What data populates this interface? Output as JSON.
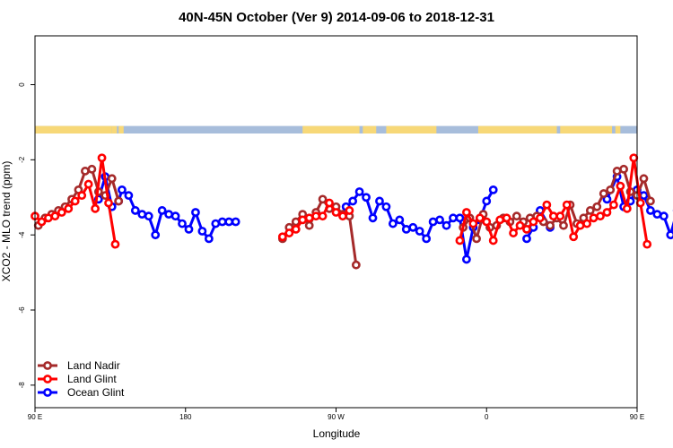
{
  "chart_data": {
    "type": "line",
    "title": "40N-45N October (Ver 9)   2014-09-06 to 2018-12-31",
    "xlabel": "Longitude",
    "ylabel": "XCO2 - MLO trend (ppm)",
    "xlim": [
      90,
      450
    ],
    "ylim": [
      -8.6,
      1.3
    ],
    "xticks": [
      {
        "value": 90,
        "label": "90 E"
      },
      {
        "value": 180,
        "label": "180"
      },
      {
        "value": 270,
        "label": "90 W"
      },
      {
        "value": 360,
        "label": "0"
      },
      {
        "value": 450,
        "label": "90 E"
      },
      {
        "value": 540,
        "label": "180"
      }
    ],
    "yticks": [
      {
        "value": 0,
        "label": "0"
      },
      {
        "value": -2,
        "label": "-2"
      },
      {
        "value": -4,
        "label": "-4"
      },
      {
        "value": -6,
        "label": "-6"
      },
      {
        "value": -8,
        "label": "-8"
      }
    ],
    "land_band": {
      "y_range": [
        -1.1,
        -1.3
      ],
      "ocean_color": "#a7bddb",
      "land_color": "#f7d878",
      "land_segments": [
        [
          90,
          136
        ],
        [
          136,
          139
        ],
        [
          140,
          143
        ],
        [
          250,
          284
        ],
        [
          286,
          294
        ],
        [
          300,
          330
        ],
        [
          355,
          402
        ],
        [
          404,
          435
        ],
        [
          437,
          440
        ]
      ]
    },
    "legend": {
      "position": "bottom-left",
      "entries": [
        {
          "name": "Land Nadir",
          "color": "#a52a2a"
        },
        {
          "name": "Land Glint",
          "color": "#ff0000"
        },
        {
          "name": "Ocean Glint",
          "color": "#0000ff"
        }
      ]
    },
    "series": [
      {
        "name": "Land Ocean Glint",
        "legend_name": "Ocean Glint",
        "color": "#0000ff",
        "segments": [
          [
            [
              128,
              -3.05
            ],
            [
              132,
              -2.45
            ],
            [
              136,
              -3.25
            ],
            [
              140,
              -3.1
            ],
            [
              142,
              -2.8
            ],
            [
              146,
              -2.95
            ],
            [
              150,
              -3.35
            ],
            [
              154,
              -3.45
            ],
            [
              158,
              -3.5
            ],
            [
              162,
              -4.0
            ],
            [
              166,
              -3.35
            ],
            [
              170,
              -3.45
            ],
            [
              174,
              -3.5
            ],
            [
              178,
              -3.7
            ],
            [
              182,
              -3.85
            ],
            [
              186,
              -3.4
            ],
            [
              190,
              -3.9
            ],
            [
              194,
              -4.1
            ],
            [
              198,
              -3.7
            ],
            [
              202,
              -3.65
            ],
            [
              206,
              -3.65
            ],
            [
              210,
              -3.65
            ]
          ],
          [
            [
              276,
              -3.25
            ],
            [
              280,
              -3.1
            ],
            [
              284,
              -2.85
            ],
            [
              288,
              -3.0
            ],
            [
              292,
              -3.55
            ],
            [
              296,
              -3.1
            ],
            [
              300,
              -3.25
            ],
            [
              304,
              -3.7
            ],
            [
              308,
              -3.6
            ],
            [
              312,
              -3.85
            ],
            [
              316,
              -3.8
            ],
            [
              320,
              -3.9
            ],
            [
              324,
              -4.1
            ],
            [
              328,
              -3.65
            ],
            [
              332,
              -3.6
            ],
            [
              336,
              -3.75
            ],
            [
              340,
              -3.55
            ],
            [
              344,
              -3.55
            ],
            [
              348,
              -4.65
            ],
            [
              352,
              -3.8
            ],
            [
              356,
              -3.6
            ],
            [
              360,
              -3.1
            ],
            [
              364,
              -2.8
            ]
          ],
          [
            [
              384,
              -4.1
            ],
            [
              388,
              -3.8
            ],
            [
              392,
              -3.35
            ],
            [
              398,
              -3.8
            ]
          ],
          [
            [
              432,
              -3.05
            ],
            [
              438,
              -2.45
            ],
            [
              442,
              -3.25
            ],
            [
              446,
              -3.1
            ],
            [
              450,
              -2.8
            ],
            [
              454,
              -2.95
            ],
            [
              458,
              -3.35
            ],
            [
              462,
              -3.45
            ],
            [
              466,
              -3.5
            ],
            [
              470,
              -4.0
            ],
            [
              474,
              -3.35
            ]
          ]
        ]
      },
      {
        "name": "Land Nadir",
        "color": "#a52a2a",
        "segments": [
          [
            [
              92,
              -3.75
            ],
            [
              96,
              -3.55
            ],
            [
              100,
              -3.45
            ],
            [
              104,
              -3.35
            ],
            [
              108,
              -3.25
            ],
            [
              112,
              -3.05
            ],
            [
              116,
              -2.8
            ],
            [
              120,
              -2.3
            ],
            [
              124,
              -2.25
            ],
            [
              128,
              -2.85
            ],
            [
              132,
              -2.95
            ],
            [
              136,
              -2.5
            ],
            [
              140,
              -3.1
            ]
          ],
          [
            [
              238,
              -4.1
            ],
            [
              242,
              -3.8
            ],
            [
              246,
              -3.65
            ],
            [
              250,
              -3.45
            ],
            [
              254,
              -3.75
            ],
            [
              258,
              -3.4
            ],
            [
              262,
              -3.05
            ],
            [
              266,
              -3.3
            ],
            [
              270,
              -3.25
            ],
            [
              274,
              -3.45
            ],
            [
              278,
              -3.5
            ],
            [
              282,
              -4.8
            ]
          ],
          [
            [
              346,
              -3.8
            ],
            [
              350,
              -3.55
            ],
            [
              354,
              -4.1
            ],
            [
              358,
              -3.45
            ],
            [
              362,
              -3.8
            ],
            [
              366,
              -3.75
            ],
            [
              370,
              -3.55
            ],
            [
              374,
              -3.65
            ],
            [
              378,
              -3.5
            ],
            [
              382,
              -3.65
            ],
            [
              386,
              -3.55
            ],
            [
              390,
              -3.5
            ],
            [
              394,
              -3.65
            ],
            [
              398,
              -3.75
            ],
            [
              402,
              -3.55
            ],
            [
              406,
              -3.75
            ],
            [
              410,
              -3.2
            ],
            [
              414,
              -3.7
            ],
            [
              418,
              -3.55
            ],
            [
              422,
              -3.35
            ],
            [
              426,
              -3.25
            ],
            [
              430,
              -2.9
            ],
            [
              434,
              -2.8
            ],
            [
              438,
              -2.3
            ],
            [
              442,
              -2.25
            ],
            [
              446,
              -2.85
            ],
            [
              450,
              -2.95
            ],
            [
              454,
              -2.5
            ],
            [
              458,
              -3.1
            ]
          ]
        ]
      },
      {
        "name": "Land Glint",
        "color": "#ff0000",
        "segments": [
          [
            [
              90,
              -3.5
            ],
            [
              94,
              -3.65
            ],
            [
              98,
              -3.55
            ],
            [
              102,
              -3.5
            ],
            [
              106,
              -3.4
            ],
            [
              110,
              -3.3
            ],
            [
              114,
              -3.1
            ],
            [
              118,
              -2.95
            ],
            [
              122,
              -2.65
            ],
            [
              126,
              -3.3
            ],
            [
              130,
              -1.95
            ],
            [
              134,
              -3.15
            ],
            [
              138,
              -4.25
            ]
          ],
          [
            [
              238,
              -4.05
            ],
            [
              242,
              -3.95
            ],
            [
              246,
              -3.85
            ],
            [
              250,
              -3.6
            ],
            [
              254,
              -3.55
            ],
            [
              258,
              -3.5
            ],
            [
              262,
              -3.5
            ],
            [
              266,
              -3.15
            ],
            [
              270,
              -3.4
            ],
            [
              274,
              -3.5
            ],
            [
              278,
              -3.35
            ]
          ],
          [
            [
              344,
              -4.15
            ],
            [
              348,
              -3.4
            ],
            [
              352,
              -3.7
            ],
            [
              356,
              -3.55
            ],
            [
              360,
              -3.65
            ],
            [
              364,
              -4.15
            ],
            [
              368,
              -3.6
            ],
            [
              372,
              -3.55
            ],
            [
              376,
              -3.95
            ],
            [
              380,
              -3.75
            ],
            [
              384,
              -3.85
            ],
            [
              388,
              -3.65
            ],
            [
              392,
              -3.55
            ],
            [
              396,
              -3.2
            ],
            [
              400,
              -3.5
            ],
            [
              404,
              -3.5
            ],
            [
              408,
              -3.2
            ],
            [
              412,
              -4.05
            ],
            [
              416,
              -3.75
            ],
            [
              420,
              -3.7
            ],
            [
              424,
              -3.55
            ],
            [
              428,
              -3.5
            ],
            [
              432,
              -3.4
            ],
            [
              436,
              -3.2
            ],
            [
              440,
              -2.7
            ],
            [
              444,
              -3.3
            ],
            [
              448,
              -1.95
            ],
            [
              452,
              -3.15
            ],
            [
              456,
              -4.25
            ]
          ]
        ]
      }
    ]
  }
}
